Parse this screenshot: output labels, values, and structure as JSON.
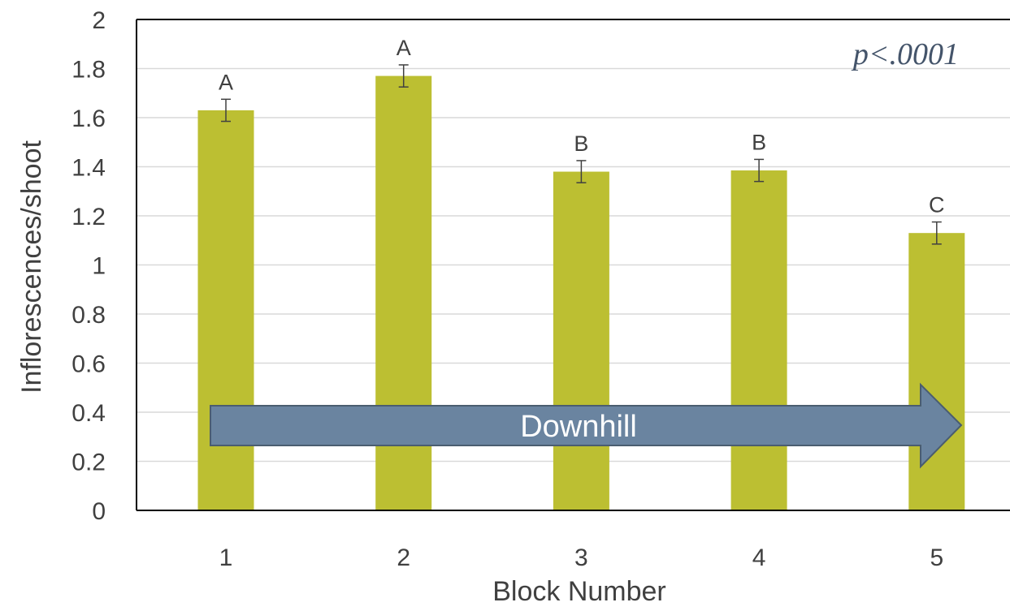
{
  "colors": {
    "bar": "#bcbf32",
    "arrow_fill": "#6a84a0",
    "arrow_stroke": "#4a5d70",
    "grid": "#d9d9d9",
    "text": "#404040",
    "pvalue": "#44546a"
  },
  "annotation": {
    "pvalue": "p<.0001",
    "arrow_label": "Downhill"
  },
  "chart_data": {
    "type": "bar",
    "title": "",
    "xlabel": "Block Number",
    "ylabel": "Inflorescences/shoot",
    "categories": [
      "1",
      "2",
      "3",
      "4",
      "5"
    ],
    "values": [
      1.63,
      1.77,
      1.38,
      1.385,
      1.13
    ],
    "error": [
      0.045,
      0.045,
      0.045,
      0.045,
      0.045
    ],
    "group_letters": [
      "A",
      "A",
      "B",
      "B",
      "C"
    ],
    "ylim": [
      0,
      2
    ],
    "yticks": [
      "0",
      "0.2",
      "0.4",
      "0.6",
      "0.8",
      "1",
      "1.2",
      "1.4",
      "1.6",
      "1.8",
      "2"
    ],
    "grid": true,
    "legend": "none"
  }
}
